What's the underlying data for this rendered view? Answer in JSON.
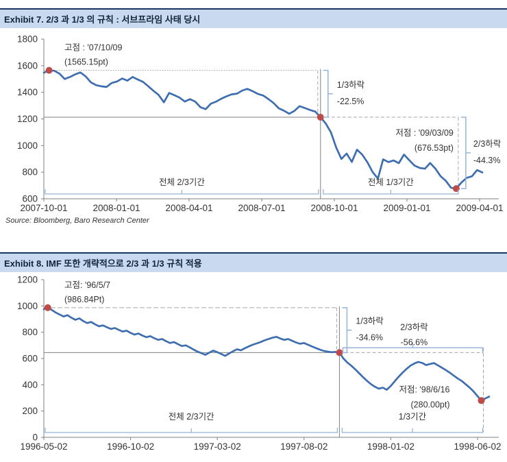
{
  "exhibits": [
    {
      "title": "Exhibit 7. 2/3 과 1/3 의 규칙 : 서브프라임 사태 당시",
      "source": "Source: Bloomberg, Baro Research Center",
      "chart_data": {
        "type": "line",
        "ylim": [
          600,
          1800
        ],
        "yticks": [
          600,
          800,
          1000,
          1200,
          1400,
          1600,
          1800
        ],
        "xtick_labels": [
          "2007-10-01",
          "2008-01-01",
          "2008-04-01",
          "2008-07-01",
          "2008-10-01",
          "2009-01-01",
          "2009-04-01"
        ],
        "grid": false,
        "legend": "none",
        "series": [
          {
            "name": "index",
            "color": "#3E6EB0",
            "values": [
              1547,
              1565.15,
              1562,
              1540,
              1500,
              1515,
              1535,
              1549,
              1520,
              1475,
              1454,
              1445,
              1440,
              1470,
              1481,
              1504,
              1488,
              1515,
              1496,
              1478,
              1445,
              1411,
              1380,
              1325,
              1395,
              1378,
              1360,
              1331,
              1349,
              1330,
              1288,
              1273,
              1315,
              1330,
              1352,
              1370,
              1385,
              1390,
              1413,
              1426,
              1408,
              1388,
              1376,
              1350,
              1320,
              1280,
              1262,
              1239,
              1260,
              1296,
              1282,
              1267,
              1255,
              1213,
              1166,
              1099,
              985,
              899,
              940,
              877,
              969,
              931,
              873,
              800,
              752,
              896,
              876,
              888,
              868,
              932,
              890,
              850,
              832,
              826,
              869,
              827,
              770,
              735,
              683,
              676.53,
              722,
              757,
              769,
              816,
              798
            ]
          }
        ],
        "key_points": {
          "peak": {
            "index": 1,
            "value": 1565.15,
            "label_line1": "고점 : '07/10/09",
            "label_line2": "(1565.15pt)"
          },
          "cross": {
            "index": 53,
            "value": 1213
          },
          "trough": {
            "index": 79,
            "value": 676.53,
            "label_line1": "저점 : '09/03/09",
            "label_line2": "(676.53pt)"
          }
        },
        "annotations": {
          "drop1": {
            "line1": "1/3하락",
            "line2": "-22.5%"
          },
          "drop2": {
            "line1": "2/3하락",
            "line2": "-44.3%",
            "bracket": "vertical"
          },
          "period1": "전체 2/3기간",
          "period2": "전체 1/3기간"
        },
        "marker_color": "#BE4B48",
        "ref_line_color": "#7F7F7F",
        "dash_line_color": "#A6A6A6",
        "bracket_color": "#95B3D7",
        "text_color": "#333333"
      }
    },
    {
      "title": "Exhibit 8. IMF 또한 개략적으로 2/3 과 1/3 규칙 적용",
      "source": "",
      "chart_data": {
        "type": "line",
        "ylim": [
          0,
          1200
        ],
        "yticks": [
          0,
          200,
          400,
          600,
          800,
          1000,
          1200
        ],
        "xtick_labels": [
          "1996-05-02",
          "1996-10-02",
          "1997-03-02",
          "1997-08-02",
          "1998-01-02",
          "1998-06-02"
        ],
        "grid": false,
        "legend": "none",
        "series": [
          {
            "name": "index",
            "color": "#3E6EB0",
            "values": [
              975,
              986.84,
              970,
              950,
              935,
              920,
              930,
              910,
              895,
              905,
              885,
              870,
              878,
              860,
              845,
              852,
              838,
              825,
              832,
              818,
              805,
              812,
              795,
              782,
              790,
              775,
              762,
              770,
              755,
              742,
              748,
              732,
              718,
              725,
              710,
              695,
              700,
              685,
              668,
              652,
              640,
              628,
              645,
              660,
              648,
              635,
              620,
              638,
              655,
              670,
              662,
              678,
              692,
              705,
              715,
              725,
              738,
              748,
              758,
              765,
              752,
              742,
              748,
              735,
              722,
              712,
              718,
              705,
              692,
              680,
              668,
              658,
              652,
              648,
              650,
              645,
              600,
              570,
              545,
              518,
              488,
              458,
              430,
              405,
              385,
              370,
              378,
              362,
              390,
              425,
              460,
              492,
              520,
              545,
              562,
              574,
              566,
              550,
              558,
              565,
              548,
              530,
              512,
              492,
              470,
              448,
              430,
              405,
              380,
              350,
              315,
              280,
              296,
              310
            ]
          }
        ],
        "key_points": {
          "peak": {
            "index": 1,
            "value": 986.84,
            "label_line1": "고점: '96/5/7",
            "label_line2": "(986.84Pt)"
          },
          "cross": {
            "index": 75,
            "value": 645
          },
          "trough": {
            "index": 111,
            "value": 280,
            "label_line1": "저점: '98/6/16",
            "label_line2": "(280.00pt)"
          }
        },
        "annotations": {
          "drop1": {
            "line1": "1/3하락",
            "line2": "-34.6%"
          },
          "drop2": {
            "line1": "2/3하락",
            "line2": "-56.6%",
            "bracket": "horizontal"
          },
          "period1": "전체 2/3기간",
          "period2": "1/3기간"
        },
        "marker_color": "#BE4B48",
        "ref_line_color": "#7F7F7F",
        "dash_line_color": "#A6A6A6",
        "bracket_color": "#95B3D7",
        "text_color": "#333333"
      }
    }
  ]
}
